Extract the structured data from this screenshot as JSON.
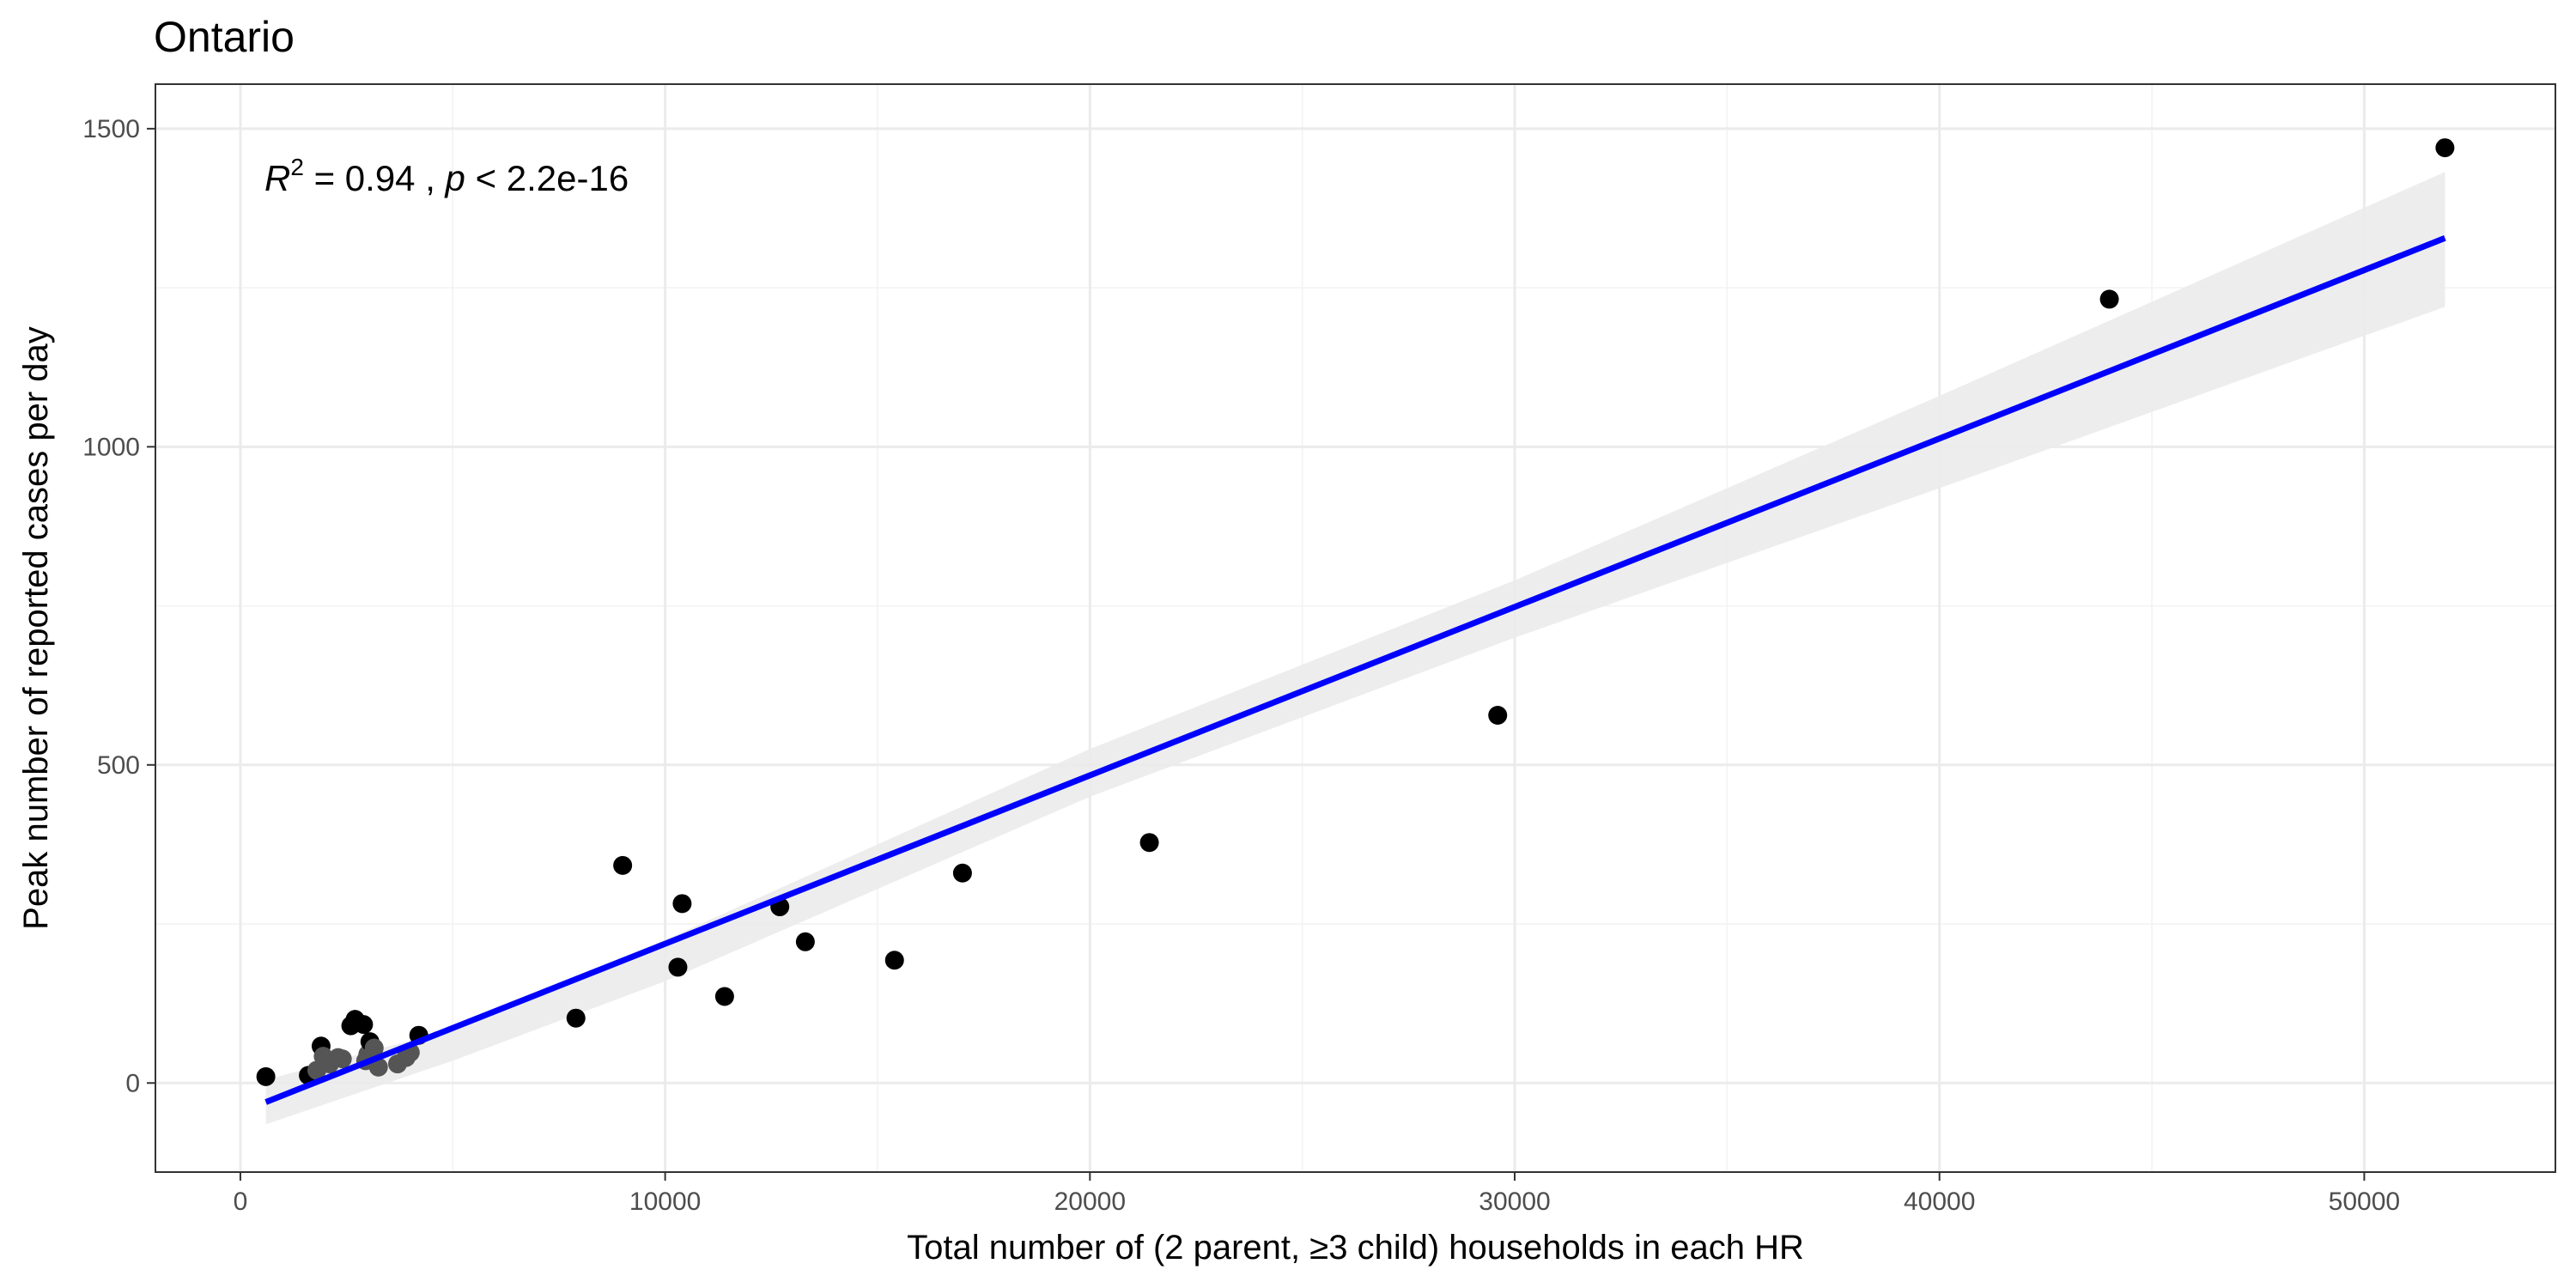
{
  "chart_data": {
    "type": "scatter",
    "title": "Ontario",
    "xlabel": "Total number of (2 parent, ≥3 child) households in each HR",
    "ylabel": "Peak number of reported cases per day",
    "xlim": [
      -2000,
      54500
    ],
    "ylim": [
      -140,
      1570
    ],
    "x_ticks": [
      0,
      10000,
      20000,
      30000,
      40000,
      50000
    ],
    "x_tick_labels": [
      "0",
      "10000",
      "20000",
      "30000",
      "40000",
      "50000"
    ],
    "y_ticks": [
      0,
      500,
      1000,
      1500
    ],
    "y_tick_labels": [
      "0",
      "500",
      "1000",
      "1500"
    ],
    "grid": true,
    "annotation": {
      "r_symbol": "R",
      "r_exponent": "2",
      "r_value_text": " = 0.94 , ",
      "p_symbol": "p",
      "p_value_text": " < 2.2e-16"
    },
    "points": [
      {
        "x": 600,
        "y": 10
      },
      {
        "x": 1600,
        "y": 12
      },
      {
        "x": 1800,
        "y": 20
      },
      {
        "x": 1900,
        "y": 58
      },
      {
        "x": 1950,
        "y": 42
      },
      {
        "x": 2100,
        "y": 30
      },
      {
        "x": 2300,
        "y": 40
      },
      {
        "x": 2400,
        "y": 38
      },
      {
        "x": 2600,
        "y": 90
      },
      {
        "x": 2700,
        "y": 100
      },
      {
        "x": 2900,
        "y": 92
      },
      {
        "x": 2950,
        "y": 35
      },
      {
        "x": 3000,
        "y": 45
      },
      {
        "x": 3050,
        "y": 65
      },
      {
        "x": 3150,
        "y": 55
      },
      {
        "x": 3250,
        "y": 25
      },
      {
        "x": 3700,
        "y": 30
      },
      {
        "x": 3900,
        "y": 40
      },
      {
        "x": 4000,
        "y": 48
      },
      {
        "x": 4200,
        "y": 75
      },
      {
        "x": 7900,
        "y": 102
      },
      {
        "x": 9000,
        "y": 342
      },
      {
        "x": 10300,
        "y": 182
      },
      {
        "x": 10400,
        "y": 282
      },
      {
        "x": 11400,
        "y": 136
      },
      {
        "x": 12700,
        "y": 277
      },
      {
        "x": 13300,
        "y": 222
      },
      {
        "x": 15400,
        "y": 193
      },
      {
        "x": 17000,
        "y": 330
      },
      {
        "x": 21400,
        "y": 378
      },
      {
        "x": 29600,
        "y": 578
      },
      {
        "x": 44000,
        "y": 1232
      },
      {
        "x": 51900,
        "y": 1470
      }
    ],
    "fit_line": {
      "x": [
        600,
        51900
      ],
      "y": [
        -30,
        1328
      ],
      "color": "#0000ff"
    },
    "confidence_band": {
      "x": [
        600,
        5000,
        10000,
        20000,
        30000,
        40000,
        51900
      ],
      "lower": [
        -65,
        35,
        160,
        450,
        700,
        935,
        1220
      ],
      "upper": [
        5,
        85,
        225,
        525,
        790,
        1080,
        1432
      ],
      "color": "#ebebeb"
    },
    "point_color": "#000000",
    "cluster_point_color": "#555555"
  }
}
